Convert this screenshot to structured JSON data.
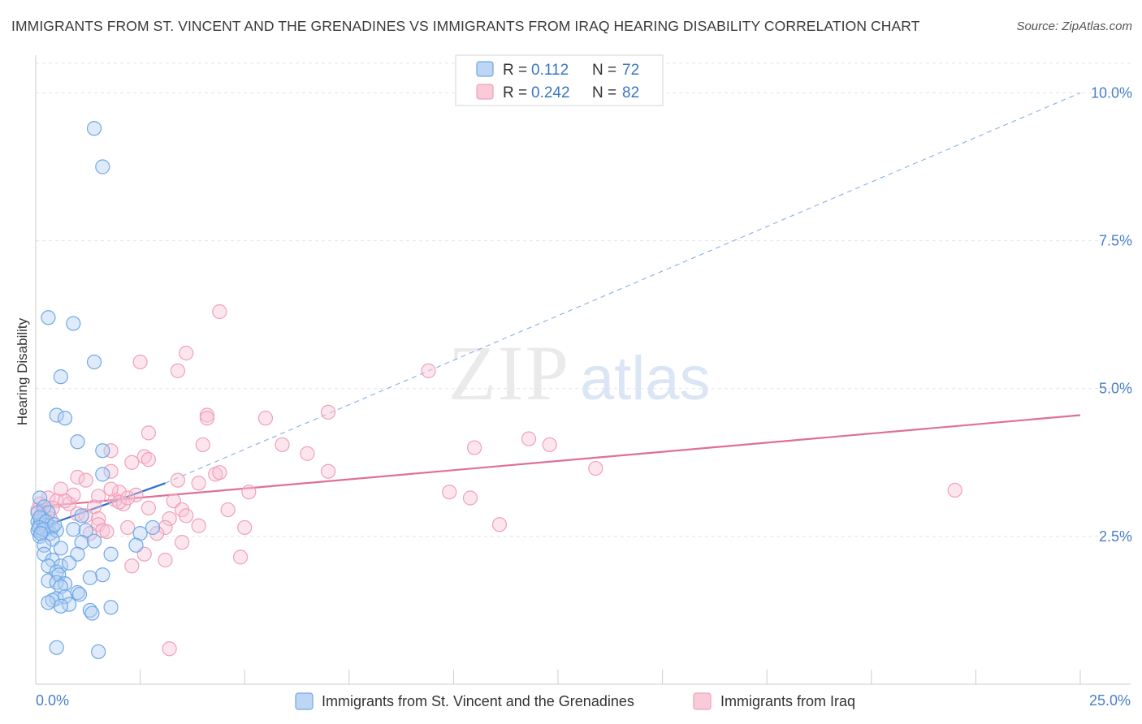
{
  "title": "IMMIGRANTS FROM ST. VINCENT AND THE GRENADINES VS IMMIGRANTS FROM IRAQ HEARING DISABILITY CORRELATION CHART",
  "source": "Source: ZipAtlas.com",
  "watermark": {
    "zip": "ZIP",
    "atlas": "atlas"
  },
  "legend": {
    "r_label": "R =",
    "n_label": "N =",
    "rows": [
      {
        "r": "0.112",
        "n": "72",
        "color": "#6fa8e6"
      },
      {
        "r": "0.242",
        "n": "82",
        "color": "#f0a0b8"
      }
    ]
  },
  "bottom_legend": [
    {
      "label": "Immigrants from St. Vincent and the Grenadines",
      "color": "#6fa8e6"
    },
    {
      "label": "Immigrants from Iraq",
      "color": "#f0a0b8"
    }
  ],
  "chart_data": {
    "type": "scatter",
    "title": "IMMIGRANTS FROM ST. VINCENT AND THE GRENADINES VS IMMIGRANTS FROM IRAQ HEARING DISABILITY CORRELATION CHART",
    "xlabel": "",
    "ylabel": "Hearing Disability",
    "xlim": [
      0,
      25
    ],
    "ylim": [
      0,
      10.5
    ],
    "x_tick_labels": [
      "0.0%",
      "25.0%"
    ],
    "y_ticks": [
      2.5,
      5.0,
      7.5,
      10.0
    ],
    "y_tick_labels": [
      "2.5%",
      "5.0%",
      "7.5%",
      "10.0%"
    ],
    "grid": true,
    "series": [
      {
        "name": "Immigrants from St. Vincent and the Grenadines",
        "color": "#6fa8e6",
        "line_color": "#2a6fd0",
        "trend": {
          "x0": 0,
          "y0": 2.62,
          "x1": 3.1,
          "y1": 3.4,
          "dash_to_x": 25,
          "dash_to_y": 10.0
        },
        "points": [
          [
            1.4,
            9.4
          ],
          [
            1.6,
            8.75
          ],
          [
            0.3,
            6.2
          ],
          [
            0.9,
            6.1
          ],
          [
            1.4,
            5.45
          ],
          [
            0.6,
            5.2
          ],
          [
            0.5,
            4.55
          ],
          [
            0.7,
            4.5
          ],
          [
            1.0,
            4.1
          ],
          [
            1.6,
            3.95
          ],
          [
            1.6,
            3.55
          ],
          [
            0.1,
            3.15
          ],
          [
            0.2,
            3.0
          ],
          [
            0.3,
            2.9
          ],
          [
            0.15,
            2.8
          ],
          [
            1.1,
            2.85
          ],
          [
            0.05,
            2.75
          ],
          [
            0.1,
            2.7
          ],
          [
            0.2,
            2.7
          ],
          [
            0.3,
            2.68
          ],
          [
            0.4,
            2.65
          ],
          [
            0.05,
            2.6
          ],
          [
            0.15,
            2.58
          ],
          [
            0.25,
            2.62
          ],
          [
            0.35,
            2.55
          ],
          [
            0.5,
            2.6
          ],
          [
            0.9,
            2.62
          ],
          [
            1.2,
            2.6
          ],
          [
            2.8,
            2.65
          ],
          [
            2.5,
            2.55
          ],
          [
            0.1,
            2.5
          ],
          [
            0.4,
            2.45
          ],
          [
            0.2,
            2.35
          ],
          [
            0.6,
            2.3
          ],
          [
            1.1,
            2.4
          ],
          [
            1.4,
            2.42
          ],
          [
            2.4,
            2.35
          ],
          [
            0.2,
            2.2
          ],
          [
            1.0,
            2.2
          ],
          [
            1.8,
            2.2
          ],
          [
            0.4,
            2.1
          ],
          [
            0.3,
            2.0
          ],
          [
            0.6,
            2.0
          ],
          [
            0.8,
            2.05
          ],
          [
            0.5,
            1.9
          ],
          [
            0.55,
            1.85
          ],
          [
            1.6,
            1.85
          ],
          [
            1.3,
            1.8
          ],
          [
            0.3,
            1.75
          ],
          [
            0.5,
            1.72
          ],
          [
            0.7,
            1.7
          ],
          [
            0.6,
            1.65
          ],
          [
            1.0,
            1.55
          ],
          [
            1.05,
            1.52
          ],
          [
            0.5,
            1.45
          ],
          [
            0.4,
            1.42
          ],
          [
            0.7,
            1.48
          ],
          [
            0.3,
            1.38
          ],
          [
            0.8,
            1.35
          ],
          [
            0.6,
            1.32
          ],
          [
            1.8,
            1.3
          ],
          [
            1.3,
            1.25
          ],
          [
            1.35,
            1.2
          ],
          [
            0.5,
            0.62
          ],
          [
            1.5,
            0.55
          ],
          [
            0.05,
            2.9
          ],
          [
            0.1,
            2.82
          ],
          [
            0.25,
            2.75
          ],
          [
            0.08,
            2.65
          ],
          [
            0.18,
            2.62
          ],
          [
            0.45,
            2.7
          ],
          [
            0.12,
            2.55
          ]
        ]
      },
      {
        "name": "Immigrants from Iraq",
        "color": "#f0a0b8",
        "line_color": "#e06e98",
        "trend": {
          "x0": 0,
          "y0": 3.0,
          "x1": 25,
          "y1": 4.55
        },
        "points": [
          [
            4.4,
            6.3
          ],
          [
            3.6,
            5.6
          ],
          [
            2.5,
            5.45
          ],
          [
            3.4,
            5.3
          ],
          [
            9.4,
            5.3
          ],
          [
            4.1,
            4.55
          ],
          [
            4.1,
            4.5
          ],
          [
            5.5,
            4.5
          ],
          [
            7.0,
            4.6
          ],
          [
            2.7,
            4.25
          ],
          [
            4.0,
            4.05
          ],
          [
            5.9,
            4.05
          ],
          [
            11.8,
            4.15
          ],
          [
            12.3,
            4.05
          ],
          [
            10.5,
            4.0
          ],
          [
            1.8,
            3.95
          ],
          [
            6.5,
            3.9
          ],
          [
            2.6,
            3.85
          ],
          [
            2.7,
            3.8
          ],
          [
            2.3,
            3.75
          ],
          [
            13.4,
            3.65
          ],
          [
            1.8,
            3.6
          ],
          [
            4.3,
            3.55
          ],
          [
            7.0,
            3.6
          ],
          [
            4.4,
            3.58
          ],
          [
            1.0,
            3.5
          ],
          [
            1.2,
            3.45
          ],
          [
            3.4,
            3.45
          ],
          [
            3.9,
            3.4
          ],
          [
            0.6,
            3.3
          ],
          [
            5.1,
            3.25
          ],
          [
            9.9,
            3.25
          ],
          [
            10.4,
            3.15
          ],
          [
            22.0,
            3.28
          ],
          [
            0.9,
            3.2
          ],
          [
            1.5,
            3.18
          ],
          [
            2.4,
            3.2
          ],
          [
            1.9,
            3.12
          ],
          [
            2.0,
            3.25
          ],
          [
            0.3,
            3.15
          ],
          [
            0.5,
            3.1
          ],
          [
            0.8,
            3.05
          ],
          [
            2.1,
            3.05
          ],
          [
            2.0,
            3.08
          ],
          [
            3.3,
            3.1
          ],
          [
            0.1,
            3.05
          ],
          [
            0.2,
            3.0
          ],
          [
            0.4,
            2.98
          ],
          [
            1.4,
            3.0
          ],
          [
            2.7,
            2.98
          ],
          [
            3.5,
            2.95
          ],
          [
            4.6,
            2.95
          ],
          [
            0.15,
            2.9
          ],
          [
            0.3,
            2.9
          ],
          [
            1.0,
            2.88
          ],
          [
            1.2,
            2.85
          ],
          [
            3.6,
            2.85
          ],
          [
            1.5,
            2.8
          ],
          [
            3.2,
            2.8
          ],
          [
            0.25,
            2.75
          ],
          [
            1.5,
            2.7
          ],
          [
            2.2,
            2.65
          ],
          [
            3.1,
            2.65
          ],
          [
            3.9,
            2.68
          ],
          [
            5.0,
            2.65
          ],
          [
            11.1,
            2.7
          ],
          [
            1.6,
            2.6
          ],
          [
            1.7,
            2.58
          ],
          [
            2.9,
            2.55
          ],
          [
            1.3,
            2.55
          ],
          [
            3.5,
            2.4
          ],
          [
            2.6,
            2.2
          ],
          [
            4.9,
            2.15
          ],
          [
            3.1,
            2.1
          ],
          [
            2.3,
            2.0
          ],
          [
            3.2,
            0.6
          ],
          [
            0.05,
            2.95
          ],
          [
            0.12,
            2.85
          ],
          [
            0.35,
            2.8
          ],
          [
            0.7,
            3.1
          ],
          [
            1.8,
            3.3
          ],
          [
            2.2,
            3.15
          ]
        ]
      }
    ]
  }
}
